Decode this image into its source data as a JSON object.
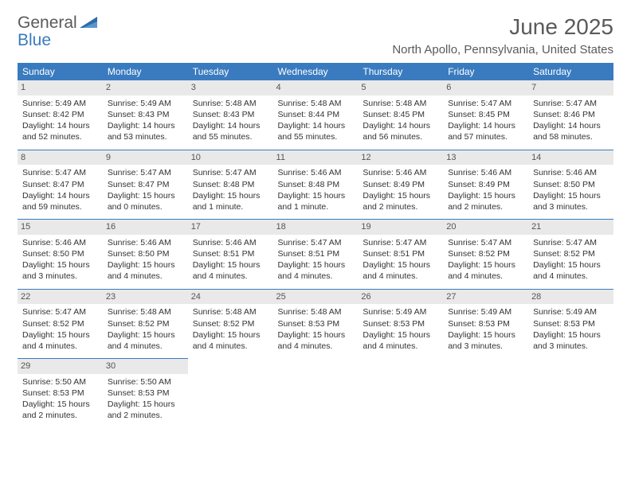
{
  "logo": {
    "text1": "General",
    "text2": "Blue"
  },
  "title": "June 2025",
  "location": "North Apollo, Pennsylvania, United States",
  "colors": {
    "header_bg": "#3a7bbf",
    "header_text": "#ffffff",
    "daynum_bg": "#e9e9e9",
    "border": "#3a7bbf",
    "text": "#333333",
    "muted": "#5a5a5a"
  },
  "day_labels": [
    "Sunday",
    "Monday",
    "Tuesday",
    "Wednesday",
    "Thursday",
    "Friday",
    "Saturday"
  ],
  "weeks": [
    [
      {
        "n": "1",
        "sr": "Sunrise: 5:49 AM",
        "ss": "Sunset: 8:42 PM",
        "d1": "Daylight: 14 hours",
        "d2": "and 52 minutes."
      },
      {
        "n": "2",
        "sr": "Sunrise: 5:49 AM",
        "ss": "Sunset: 8:43 PM",
        "d1": "Daylight: 14 hours",
        "d2": "and 53 minutes."
      },
      {
        "n": "3",
        "sr": "Sunrise: 5:48 AM",
        "ss": "Sunset: 8:43 PM",
        "d1": "Daylight: 14 hours",
        "d2": "and 55 minutes."
      },
      {
        "n": "4",
        "sr": "Sunrise: 5:48 AM",
        "ss": "Sunset: 8:44 PM",
        "d1": "Daylight: 14 hours",
        "d2": "and 55 minutes."
      },
      {
        "n": "5",
        "sr": "Sunrise: 5:48 AM",
        "ss": "Sunset: 8:45 PM",
        "d1": "Daylight: 14 hours",
        "d2": "and 56 minutes."
      },
      {
        "n": "6",
        "sr": "Sunrise: 5:47 AM",
        "ss": "Sunset: 8:45 PM",
        "d1": "Daylight: 14 hours",
        "d2": "and 57 minutes."
      },
      {
        "n": "7",
        "sr": "Sunrise: 5:47 AM",
        "ss": "Sunset: 8:46 PM",
        "d1": "Daylight: 14 hours",
        "d2": "and 58 minutes."
      }
    ],
    [
      {
        "n": "8",
        "sr": "Sunrise: 5:47 AM",
        "ss": "Sunset: 8:47 PM",
        "d1": "Daylight: 14 hours",
        "d2": "and 59 minutes."
      },
      {
        "n": "9",
        "sr": "Sunrise: 5:47 AM",
        "ss": "Sunset: 8:47 PM",
        "d1": "Daylight: 15 hours",
        "d2": "and 0 minutes."
      },
      {
        "n": "10",
        "sr": "Sunrise: 5:47 AM",
        "ss": "Sunset: 8:48 PM",
        "d1": "Daylight: 15 hours",
        "d2": "and 1 minute."
      },
      {
        "n": "11",
        "sr": "Sunrise: 5:46 AM",
        "ss": "Sunset: 8:48 PM",
        "d1": "Daylight: 15 hours",
        "d2": "and 1 minute."
      },
      {
        "n": "12",
        "sr": "Sunrise: 5:46 AM",
        "ss": "Sunset: 8:49 PM",
        "d1": "Daylight: 15 hours",
        "d2": "and 2 minutes."
      },
      {
        "n": "13",
        "sr": "Sunrise: 5:46 AM",
        "ss": "Sunset: 8:49 PM",
        "d1": "Daylight: 15 hours",
        "d2": "and 2 minutes."
      },
      {
        "n": "14",
        "sr": "Sunrise: 5:46 AM",
        "ss": "Sunset: 8:50 PM",
        "d1": "Daylight: 15 hours",
        "d2": "and 3 minutes."
      }
    ],
    [
      {
        "n": "15",
        "sr": "Sunrise: 5:46 AM",
        "ss": "Sunset: 8:50 PM",
        "d1": "Daylight: 15 hours",
        "d2": "and 3 minutes."
      },
      {
        "n": "16",
        "sr": "Sunrise: 5:46 AM",
        "ss": "Sunset: 8:50 PM",
        "d1": "Daylight: 15 hours",
        "d2": "and 4 minutes."
      },
      {
        "n": "17",
        "sr": "Sunrise: 5:46 AM",
        "ss": "Sunset: 8:51 PM",
        "d1": "Daylight: 15 hours",
        "d2": "and 4 minutes."
      },
      {
        "n": "18",
        "sr": "Sunrise: 5:47 AM",
        "ss": "Sunset: 8:51 PM",
        "d1": "Daylight: 15 hours",
        "d2": "and 4 minutes."
      },
      {
        "n": "19",
        "sr": "Sunrise: 5:47 AM",
        "ss": "Sunset: 8:51 PM",
        "d1": "Daylight: 15 hours",
        "d2": "and 4 minutes."
      },
      {
        "n": "20",
        "sr": "Sunrise: 5:47 AM",
        "ss": "Sunset: 8:52 PM",
        "d1": "Daylight: 15 hours",
        "d2": "and 4 minutes."
      },
      {
        "n": "21",
        "sr": "Sunrise: 5:47 AM",
        "ss": "Sunset: 8:52 PM",
        "d1": "Daylight: 15 hours",
        "d2": "and 4 minutes."
      }
    ],
    [
      {
        "n": "22",
        "sr": "Sunrise: 5:47 AM",
        "ss": "Sunset: 8:52 PM",
        "d1": "Daylight: 15 hours",
        "d2": "and 4 minutes."
      },
      {
        "n": "23",
        "sr": "Sunrise: 5:48 AM",
        "ss": "Sunset: 8:52 PM",
        "d1": "Daylight: 15 hours",
        "d2": "and 4 minutes."
      },
      {
        "n": "24",
        "sr": "Sunrise: 5:48 AM",
        "ss": "Sunset: 8:52 PM",
        "d1": "Daylight: 15 hours",
        "d2": "and 4 minutes."
      },
      {
        "n": "25",
        "sr": "Sunrise: 5:48 AM",
        "ss": "Sunset: 8:53 PM",
        "d1": "Daylight: 15 hours",
        "d2": "and 4 minutes."
      },
      {
        "n": "26",
        "sr": "Sunrise: 5:49 AM",
        "ss": "Sunset: 8:53 PM",
        "d1": "Daylight: 15 hours",
        "d2": "and 4 minutes."
      },
      {
        "n": "27",
        "sr": "Sunrise: 5:49 AM",
        "ss": "Sunset: 8:53 PM",
        "d1": "Daylight: 15 hours",
        "d2": "and 3 minutes."
      },
      {
        "n": "28",
        "sr": "Sunrise: 5:49 AM",
        "ss": "Sunset: 8:53 PM",
        "d1": "Daylight: 15 hours",
        "d2": "and 3 minutes."
      }
    ],
    [
      {
        "n": "29",
        "sr": "Sunrise: 5:50 AM",
        "ss": "Sunset: 8:53 PM",
        "d1": "Daylight: 15 hours",
        "d2": "and 2 minutes."
      },
      {
        "n": "30",
        "sr": "Sunrise: 5:50 AM",
        "ss": "Sunset: 8:53 PM",
        "d1": "Daylight: 15 hours",
        "d2": "and 2 minutes."
      },
      null,
      null,
      null,
      null,
      null
    ]
  ]
}
